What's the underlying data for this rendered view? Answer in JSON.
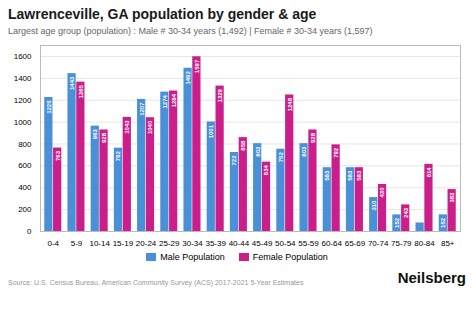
{
  "chart_data": {
    "type": "bar",
    "title": "Lawrenceville, GA population by gender & age",
    "subtitle": "Largest age group (population) : Male # 30-34 years (1,492) | Female # 30-34 years (1,597)",
    "categories": [
      "0-4",
      "5-9",
      "10-14",
      "15-19",
      "20-24",
      "25-29",
      "30-34",
      "35-39",
      "40-44",
      "45-49",
      "50-54",
      "55-59",
      "60-64",
      "65-69",
      "70-74",
      "75-79",
      "80-84",
      "85+"
    ],
    "series": [
      {
        "name": "Male Population",
        "color": "#4A90D9",
        "values": [
          1225,
          1443,
          963,
          762,
          1207,
          1274,
          1492,
          1001,
          722,
          803,
          752,
          803,
          583,
          583,
          310,
          152,
          78,
          152
        ],
        "value_labels": [
          "1225",
          "1443",
          "963",
          "762",
          "1207",
          "1274",
          "1492",
          "1001",
          "722",
          "803",
          "752",
          "803",
          "583",
          "583",
          "310",
          "152",
          null,
          "152"
        ]
      },
      {
        "name": "Female Population",
        "color": "#CC1E8A",
        "values": [
          763,
          1365,
          928,
          1043,
          1040,
          1284,
          1597,
          1329,
          858,
          634,
          1248,
          928,
          792,
          583,
          430,
          243,
          614,
          383
        ]
      }
    ],
    "ylim": [
      0,
      1700
    ],
    "yticks": [
      0,
      200,
      400,
      600,
      800,
      1000,
      1200,
      1400,
      1600
    ],
    "grid": true,
    "legend": "bottom",
    "data_labels": true,
    "source": "Source: U.S. Census Bureau, American Community Survey (ACS) 2017-2021 5-Year Estimates",
    "brand": "Neilsberg"
  }
}
